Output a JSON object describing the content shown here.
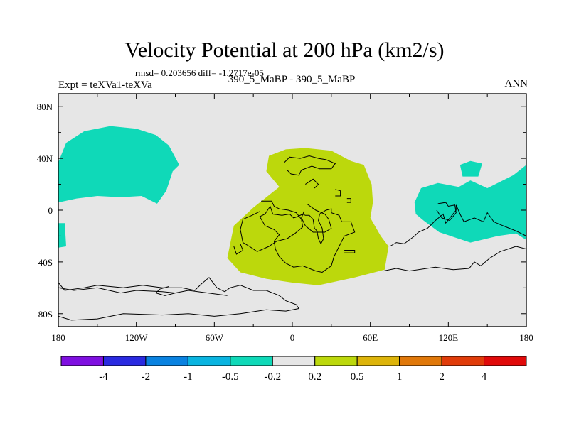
{
  "title": "Velocity Potential at 200 hPa (km2/s)",
  "stats_text": "rmsd= 0.203656 diff= -1.2717e-05",
  "experiment_label": "Expt = teXVa1-teXVa",
  "case_label": "390_5_MaBP - 390_5_MaBP",
  "season": "ANN",
  "colors": {
    "background_band": "#e6e6e6",
    "negative_band": "#0fd9b8",
    "positive_band": "#bcd80c",
    "coastline": "#000000"
  },
  "chart_data": {
    "type": "map",
    "projection": "cylindrical-equidistant",
    "lon_range": [
      -180,
      180
    ],
    "lat_range": [
      -90,
      90
    ],
    "x_ticks": [
      {
        "value": -180,
        "label": "180"
      },
      {
        "value": -120,
        "label": "120W"
      },
      {
        "value": -60,
        "label": "60W"
      },
      {
        "value": 0,
        "label": "0"
      },
      {
        "value": 60,
        "label": "60E"
      },
      {
        "value": 120,
        "label": "120E"
      },
      {
        "value": 180,
        "label": "180"
      }
    ],
    "y_ticks": [
      {
        "value": 80,
        "label": "80N"
      },
      {
        "value": 40,
        "label": "40N"
      },
      {
        "value": 0,
        "label": "0"
      },
      {
        "value": -40,
        "label": "40S"
      },
      {
        "value": -80,
        "label": "80S"
      }
    ],
    "colorbar": {
      "colors": [
        "#7f10e0",
        "#2a2ae0",
        "#0a82e0",
        "#0ab4e0",
        "#0fd9b8",
        "#e6e6e6",
        "#bcd80c",
        "#ddb40a",
        "#e0780a",
        "#e03c0a",
        "#e00a0a"
      ],
      "labels": [
        "-4",
        "-2",
        "-1",
        "-0.5",
        "-0.2",
        "0.2",
        "0.5",
        "1",
        "2",
        "4"
      ]
    },
    "contour_regions": [
      {
        "name": "north-pacific-negative",
        "level": "-0.5 to -0.2",
        "color_index": 4,
        "points": [
          [
            -180,
            37
          ],
          [
            -174,
            52
          ],
          [
            -160,
            61
          ],
          [
            -140,
            65
          ],
          [
            -120,
            63
          ],
          [
            -105,
            58
          ],
          [
            -95,
            50
          ],
          [
            -87,
            35
          ],
          [
            -92,
            30
          ],
          [
            -97,
            15
          ],
          [
            -104,
            5
          ],
          [
            -116,
            11
          ],
          [
            -132,
            10
          ],
          [
            -150,
            11
          ],
          [
            -166,
            9
          ],
          [
            -180,
            6
          ]
        ]
      },
      {
        "name": "west-pacific-negative",
        "level": "-0.5 to -0.2",
        "color_index": 4,
        "points": [
          [
            180,
            35
          ],
          [
            170,
            27
          ],
          [
            150,
            17
          ],
          [
            137,
            23
          ],
          [
            128,
            18
          ],
          [
            112,
            21
          ],
          [
            99,
            17
          ],
          [
            94,
            6
          ],
          [
            95,
            -3
          ],
          [
            101,
            -8
          ],
          [
            113,
            -17
          ],
          [
            137,
            -25
          ],
          [
            158,
            -20
          ],
          [
            172,
            -18
          ],
          [
            180,
            -23
          ]
        ]
      },
      {
        "name": "dateline-negative",
        "level": "-0.5 to -0.2",
        "color_index": 4,
        "points": [
          [
            -180,
            -10
          ],
          [
            -175,
            -10
          ],
          [
            -174,
            -28
          ],
          [
            -180,
            -29
          ]
        ]
      },
      {
        "name": "small-pacific-negative",
        "level": "-0.5 to -0.2",
        "color_index": 4,
        "points": [
          [
            129,
            35
          ],
          [
            137,
            38
          ],
          [
            146,
            36
          ],
          [
            143,
            26
          ],
          [
            131,
            26
          ]
        ]
      },
      {
        "name": "central-positive",
        "level": "0.2 to 0.5",
        "color_index": 6,
        "points": [
          [
            -5,
            47
          ],
          [
            10,
            48
          ],
          [
            30,
            46
          ],
          [
            45,
            38
          ],
          [
            55,
            35
          ],
          [
            61,
            20
          ],
          [
            62,
            6
          ],
          [
            60,
            -6
          ],
          [
            68,
            -20
          ],
          [
            74,
            -28
          ],
          [
            71,
            -46
          ],
          [
            48,
            -52
          ],
          [
            20,
            -58
          ],
          [
            0,
            -56
          ],
          [
            -20,
            -53
          ],
          [
            -40,
            -48
          ],
          [
            -50,
            -37
          ],
          [
            -45,
            -12
          ],
          [
            -30,
            2
          ],
          [
            -10,
            18
          ],
          [
            -20,
            30
          ],
          [
            -18,
            42
          ]
        ]
      }
    ],
    "coastlines": [
      {
        "name": "africa-outline",
        "points": [
          [
            -17,
            3
          ],
          [
            -15,
            -3
          ],
          [
            -8,
            -4
          ],
          [
            -2,
            -3
          ],
          [
            1,
            -6
          ],
          [
            4,
            -5
          ],
          [
            8,
            -3
          ],
          [
            10,
            -4
          ],
          [
            13,
            -4
          ],
          [
            16,
            -7
          ],
          [
            17,
            -14
          ],
          [
            19,
            -16
          ],
          [
            20,
            -22
          ],
          [
            22,
            -26
          ],
          [
            24,
            -22
          ],
          [
            23,
            -14
          ],
          [
            20,
            -8
          ],
          [
            21,
            -3
          ],
          [
            26,
            0
          ],
          [
            30,
            1
          ],
          [
            30,
            -2
          ],
          [
            36,
            -4
          ],
          [
            38,
            -9
          ],
          [
            45,
            -9
          ],
          [
            48,
            -17
          ],
          [
            40,
            -20
          ],
          [
            32,
            -36
          ],
          [
            30,
            -43
          ],
          [
            23,
            -48
          ],
          [
            18,
            -47
          ],
          [
            8,
            -43
          ],
          [
            1,
            -44
          ],
          [
            -5,
            -41
          ],
          [
            -10,
            -36
          ],
          [
            -13,
            -30
          ],
          [
            -14,
            -24
          ],
          [
            -10,
            -19
          ],
          [
            -14,
            -15
          ],
          [
            -21,
            -12
          ],
          [
            -25,
            -5
          ],
          [
            -21,
            -3
          ],
          [
            -17,
            3
          ]
        ]
      },
      {
        "name": "america-outline",
        "points": [
          [
            -180,
            -56
          ],
          [
            -175,
            -62
          ],
          [
            -160,
            -60
          ],
          [
            -150,
            -58
          ],
          [
            -130,
            -60
          ],
          [
            -115,
            -58
          ],
          [
            -100,
            -60
          ],
          [
            -85,
            -60
          ],
          [
            -75,
            -62
          ],
          [
            -70,
            -57
          ],
          [
            -64,
            -52
          ],
          [
            -58,
            -60
          ],
          [
            -52,
            -63
          ],
          [
            -48,
            -60
          ],
          [
            -40,
            -58
          ],
          [
            -30,
            -62
          ],
          [
            -20,
            -62
          ],
          [
            -10,
            -66
          ],
          [
            -5,
            -70
          ],
          [
            3,
            -73
          ],
          [
            5,
            -76
          ],
          [
            -5,
            -78
          ],
          [
            -20,
            -77
          ],
          [
            -40,
            -80
          ],
          [
            -60,
            -82
          ],
          [
            -80,
            -80
          ],
          [
            -100,
            -81
          ],
          [
            -130,
            -80
          ],
          [
            -150,
            -84
          ],
          [
            -170,
            -85
          ],
          [
            -180,
            -82
          ]
        ]
      },
      {
        "name": "southern-ocean-line",
        "points": [
          [
            -180,
            -60
          ],
          [
            -168,
            -62
          ],
          [
            -150,
            -60
          ],
          [
            -132,
            -64
          ],
          [
            -120,
            -62
          ],
          [
            -100,
            -63
          ],
          [
            -90,
            -64
          ],
          [
            -80,
            -62
          ],
          [
            -65,
            -64
          ],
          [
            -50,
            -66
          ]
        ]
      },
      {
        "name": "asia-outline",
        "points": [
          [
            75,
            -28
          ],
          [
            80,
            -25
          ],
          [
            86,
            -26
          ],
          [
            94,
            -20
          ],
          [
            97,
            -17
          ],
          [
            104,
            -14
          ],
          [
            110,
            -8
          ],
          [
            116,
            -3
          ],
          [
            118,
            -10
          ],
          [
            126,
            0
          ],
          [
            126,
            4
          ],
          [
            129,
            -3
          ],
          [
            132,
            -9
          ],
          [
            140,
            -6
          ],
          [
            147,
            -9
          ],
          [
            150,
            -2
          ],
          [
            155,
            -9
          ],
          [
            162,
            -12
          ],
          [
            172,
            -16
          ],
          [
            180,
            -20
          ]
        ]
      },
      {
        "name": "australia-outline",
        "points": [
          [
            70,
            -47
          ],
          [
            80,
            -45
          ],
          [
            90,
            -47
          ],
          [
            110,
            -44
          ],
          [
            124,
            -46
          ],
          [
            136,
            -45
          ],
          [
            140,
            -40
          ],
          [
            145,
            -43
          ],
          [
            152,
            -37
          ],
          [
            160,
            -32
          ],
          [
            172,
            -28
          ],
          [
            180,
            -30
          ]
        ]
      },
      {
        "name": "inner-continent-a",
        "points": [
          [
            -24,
            7
          ],
          [
            -16,
            7
          ],
          [
            -14,
            3
          ],
          [
            -10,
            1
          ],
          [
            -3,
            0
          ],
          [
            3,
            -2
          ],
          [
            7,
            -7
          ],
          [
            8,
            -13
          ],
          [
            2,
            -18
          ],
          [
            -4,
            -22
          ],
          [
            -12,
            -24
          ],
          [
            -18,
            -28
          ],
          [
            -27,
            -32
          ],
          [
            -33,
            -28
          ],
          [
            -38,
            -25
          ],
          [
            -40,
            -15
          ],
          [
            -38,
            -7
          ],
          [
            -31,
            -4
          ],
          [
            -25,
            -1
          ]
        ]
      },
      {
        "name": "inner-continent-b",
        "points": [
          [
            -6,
            37
          ],
          [
            -2,
            41
          ],
          [
            6,
            40
          ],
          [
            13,
            42
          ],
          [
            20,
            40
          ],
          [
            26,
            39
          ],
          [
            33,
            36
          ],
          [
            30,
            32
          ],
          [
            21,
            32
          ],
          [
            15,
            34
          ],
          [
            7,
            31
          ],
          [
            5,
            27
          ],
          [
            -1,
            28
          ],
          [
            -4,
            31
          ]
        ]
      },
      {
        "name": "inner-continent-c",
        "points": [
          [
            11,
            5
          ],
          [
            18,
            0
          ],
          [
            25,
            -3
          ],
          [
            28,
            -7
          ],
          [
            30,
            -14
          ],
          [
            25,
            -17
          ],
          [
            16,
            -17
          ],
          [
            10,
            -12
          ],
          [
            7,
            -6
          ],
          [
            9,
            -1
          ]
        ]
      },
      {
        "name": "island-a",
        "points": [
          [
            33,
            16
          ],
          [
            37,
            15
          ],
          [
            37,
            11
          ],
          [
            33,
            11
          ]
        ]
      },
      {
        "name": "island-b",
        "points": [
          [
            42,
            9
          ],
          [
            45,
            9
          ],
          [
            45,
            6
          ],
          [
            42,
            6
          ]
        ]
      },
      {
        "name": "island-c",
        "points": [
          [
            40,
            -31
          ],
          [
            48,
            -31
          ],
          [
            48,
            -33
          ],
          [
            40,
            -33
          ]
        ]
      },
      {
        "name": "island-d",
        "points": [
          [
            -40,
            -26
          ],
          [
            -38,
            -31
          ],
          [
            -43,
            -34
          ],
          [
            -45,
            -28
          ]
        ]
      },
      {
        "name": "sea-inlet",
        "points": [
          [
            10,
            20
          ],
          [
            16,
            24
          ],
          [
            20,
            20
          ],
          [
            17,
            17
          ]
        ]
      },
      {
        "name": "east-land-detail",
        "points": [
          [
            112,
            5
          ],
          [
            118,
            6
          ],
          [
            120,
            3
          ],
          [
            125,
            4
          ],
          [
            126,
            -2
          ],
          [
            121,
            -8
          ],
          [
            115,
            -6
          ],
          [
            111,
            0
          ]
        ]
      },
      {
        "name": "pacific-island-line",
        "points": [
          [
            -95,
            -59
          ],
          [
            -102,
            -61
          ],
          [
            -105,
            -64
          ],
          [
            -98,
            -66
          ],
          [
            -90,
            -64
          ]
        ]
      }
    ]
  },
  "expt_note": ""
}
